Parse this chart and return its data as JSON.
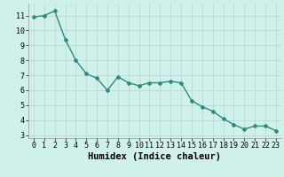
{
  "x": [
    0,
    1,
    2,
    3,
    4,
    5,
    6,
    7,
    8,
    9,
    10,
    11,
    12,
    13,
    14,
    15,
    16,
    17,
    18,
    19,
    20,
    21,
    22,
    23
  ],
  "y": [
    10.9,
    11.0,
    11.3,
    9.4,
    8.0,
    7.1,
    6.8,
    6.0,
    6.9,
    6.5,
    6.3,
    6.5,
    6.5,
    6.6,
    6.5,
    5.3,
    4.9,
    4.6,
    4.1,
    3.7,
    3.4,
    3.6,
    3.6,
    3.3
  ],
  "line_color": "#2e8b7a",
  "marker": "D",
  "marker_size": 2.0,
  "line_width": 1.0,
  "xlabel": "Humidex (Indice chaleur)",
  "ylim": [
    2.8,
    11.8
  ],
  "xlim": [
    -0.5,
    23.5
  ],
  "yticks": [
    3,
    4,
    5,
    6,
    7,
    8,
    9,
    10,
    11
  ],
  "xticks": [
    0,
    1,
    2,
    3,
    4,
    5,
    6,
    7,
    8,
    9,
    10,
    11,
    12,
    13,
    14,
    15,
    16,
    17,
    18,
    19,
    20,
    21,
    22,
    23
  ],
  "bg_color": "#cff0eb",
  "grid_color": "#b8dbd6",
  "tick_fontsize": 6.0,
  "xlabel_fontsize": 7.5
}
